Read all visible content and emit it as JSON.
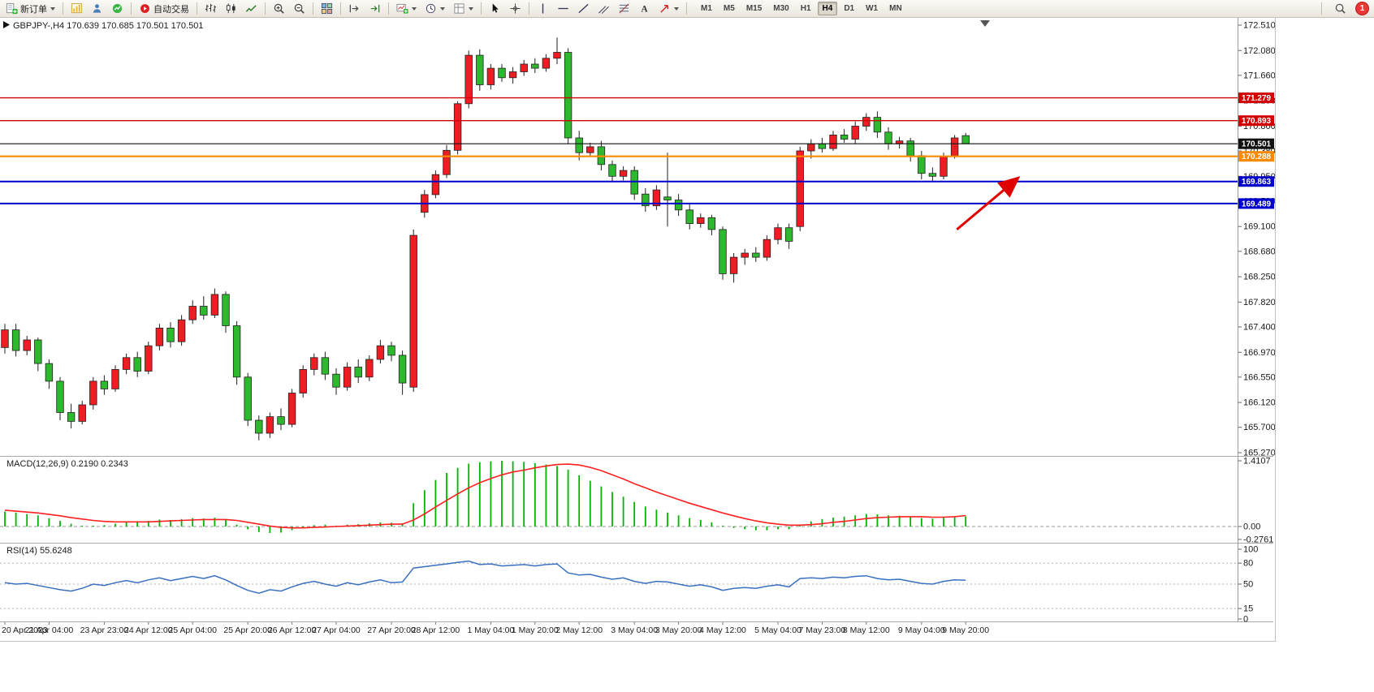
{
  "toolbar": {
    "items": [
      {
        "type": "button",
        "icon": "new-order-icon",
        "label": "新订单",
        "caret": true
      },
      {
        "type": "sep"
      },
      {
        "type": "button",
        "icon": "chart-icon"
      },
      {
        "type": "button",
        "icon": "profile-icon"
      },
      {
        "type": "button",
        "icon": "indicators-icon"
      },
      {
        "type": "sep"
      },
      {
        "type": "button",
        "icon": "autotrade-icon",
        "label": "自动交易"
      },
      {
        "type": "sep"
      },
      {
        "type": "button",
        "icon": "bar-chart-icon"
      },
      {
        "type": "button",
        "icon": "candlestick-icon"
      },
      {
        "type": "button",
        "icon": "line-chart-icon"
      },
      {
        "type": "sep"
      },
      {
        "type": "button",
        "icon": "zoom-in-icon"
      },
      {
        "type": "button",
        "icon": "zoom-out-icon"
      },
      {
        "type": "sep"
      },
      {
        "type": "button",
        "icon": "tile-windows-icon"
      },
      {
        "type": "sep"
      },
      {
        "type": "button",
        "icon": "chart-shift-icon"
      },
      {
        "type": "button",
        "icon": "auto-scroll-icon"
      },
      {
        "type": "sep"
      },
      {
        "type": "button",
        "icon": "new-chart-icon",
        "caret": true
      },
      {
        "type": "button",
        "icon": "period-icon",
        "caret": true
      },
      {
        "type": "button",
        "icon": "template-icon",
        "caret": true
      },
      {
        "type": "sep"
      },
      {
        "type": "button",
        "icon": "cursor-icon"
      },
      {
        "type": "button",
        "icon": "crosshair-icon"
      },
      {
        "type": "sep"
      },
      {
        "type": "button",
        "icon": "vline-icon"
      },
      {
        "type": "button",
        "icon": "hline-icon"
      },
      {
        "type": "button",
        "icon": "trendline-icon"
      },
      {
        "type": "button",
        "icon": "channel-icon"
      },
      {
        "type": "button",
        "icon": "fibo-icon"
      },
      {
        "type": "button",
        "icon": "text-icon"
      },
      {
        "type": "button",
        "icon": "arrows-icon",
        "caret": true
      },
      {
        "type": "sep"
      }
    ],
    "timeframes": [
      "M1",
      "M5",
      "M15",
      "M30",
      "H1",
      "H4",
      "D1",
      "W1",
      "MN"
    ],
    "active_timeframe": "H4",
    "notification_count": "1"
  },
  "chart_data": [
    {
      "type": "candlestick",
      "symbol": "GBPJPY-",
      "period": "H4",
      "title": "GBPJPY-,H4  170.639 170.685 170.501 170.501",
      "open": "170.639",
      "high": "170.685",
      "low": "170.501",
      "close": "170.501",
      "ylim": [
        165.27,
        172.51
      ],
      "bull_color": "#ee1c23",
      "bear_color": "#2db82d",
      "price_ticks": [
        "172.510",
        "172.080",
        "171.660",
        "171.230",
        "170.800",
        "170.380",
        "169.950",
        "169.530",
        "169.100",
        "168.680",
        "168.250",
        "167.820",
        "167.400",
        "166.970",
        "166.550",
        "166.120",
        "165.700",
        "165.270"
      ],
      "x_labels": [
        "20 Apr 2023",
        "21 Apr 04:00",
        "23 Apr 23:00",
        "24 Apr 12:00",
        "25 Apr 04:00",
        "25 Apr 20:00",
        "26 Apr 12:00",
        "27 Apr 04:00",
        "27 Apr 20:00",
        "28 Apr 12:00",
        "1 May 04:00",
        "1 May 20:00",
        "2 May 12:00",
        "3 May 04:00",
        "3 May 20:00",
        "4 May 12:00",
        "5 May 04:00",
        "7 May 23:00",
        "8 May 12:00",
        "9 May 04:00",
        "9 May 20:00"
      ],
      "hlines": [
        {
          "price": 171.279,
          "label": "171.279",
          "color": "#d20000",
          "width": 1.4
        },
        {
          "price": 170.893,
          "label": "170.893",
          "color": "#d20000",
          "width": 1.4
        },
        {
          "price": 170.501,
          "label": "170.501",
          "color": "#111111",
          "width": 1.2
        },
        {
          "price": 170.288,
          "label": "170.288",
          "color": "#ff8a00",
          "width": 2.2
        },
        {
          "price": 169.863,
          "label": "169.863",
          "color": "#0000cd",
          "width": 2
        },
        {
          "price": 169.489,
          "label": "169.489",
          "color": "#0000cd",
          "width": 2
        }
      ],
      "annotations": [
        {
          "type": "arrow",
          "from": {
            "bar": 86.2,
            "price": 169.05
          },
          "to": {
            "bar": 91.6,
            "price": 169.9
          },
          "color": "#e00000"
        }
      ],
      "candles": [
        [
          167.05,
          167.45,
          166.95,
          167.35
        ],
        [
          167.35,
          167.45,
          166.9,
          167.0
        ],
        [
          167.0,
          167.25,
          166.92,
          167.18
        ],
        [
          167.18,
          167.22,
          166.65,
          166.78
        ],
        [
          166.78,
          166.85,
          166.35,
          166.48
        ],
        [
          166.48,
          166.55,
          165.82,
          165.95
        ],
        [
          165.95,
          166.1,
          165.68,
          165.8
        ],
        [
          165.8,
          166.15,
          165.75,
          166.08
        ],
        [
          166.08,
          166.55,
          166.0,
          166.48
        ],
        [
          166.48,
          166.58,
          166.25,
          166.35
        ],
        [
          166.35,
          166.75,
          166.3,
          166.68
        ],
        [
          166.68,
          166.95,
          166.6,
          166.88
        ],
        [
          166.88,
          166.98,
          166.55,
          166.65
        ],
        [
          166.65,
          167.15,
          166.6,
          167.08
        ],
        [
          167.08,
          167.45,
          167.0,
          167.38
        ],
        [
          167.38,
          167.48,
          167.05,
          167.15
        ],
        [
          167.15,
          167.6,
          167.08,
          167.52
        ],
        [
          167.52,
          167.85,
          167.45,
          167.75
        ],
        [
          167.75,
          167.92,
          167.52,
          167.6
        ],
        [
          167.6,
          168.05,
          167.55,
          167.95
        ],
        [
          167.95,
          168.0,
          167.3,
          167.42
        ],
        [
          167.42,
          167.5,
          166.42,
          166.55
        ],
        [
          166.55,
          166.62,
          165.72,
          165.82
        ],
        [
          165.82,
          165.9,
          165.48,
          165.6
        ],
        [
          165.6,
          165.95,
          165.52,
          165.88
        ],
        [
          165.88,
          166.02,
          165.65,
          165.75
        ],
        [
          165.75,
          166.35,
          165.7,
          166.28
        ],
        [
          166.28,
          166.75,
          166.2,
          166.68
        ],
        [
          166.68,
          166.95,
          166.58,
          166.88
        ],
        [
          166.88,
          166.98,
          166.5,
          166.6
        ],
        [
          166.6,
          166.7,
          166.25,
          166.38
        ],
        [
          166.38,
          166.8,
          166.32,
          166.72
        ],
        [
          166.72,
          166.85,
          166.45,
          166.55
        ],
        [
          166.55,
          166.92,
          166.48,
          166.85
        ],
        [
          166.85,
          167.18,
          166.78,
          167.08
        ],
        [
          167.08,
          167.15,
          166.82,
          166.92
        ],
        [
          166.92,
          167.0,
          166.25,
          166.45
        ],
        [
          166.38,
          169.05,
          166.3,
          168.95
        ],
        [
          169.34,
          169.72,
          169.25,
          169.64
        ],
        [
          169.64,
          170.05,
          169.58,
          169.98
        ],
        [
          169.98,
          170.48,
          169.92,
          170.39
        ],
        [
          170.39,
          171.22,
          170.32,
          171.18
        ],
        [
          171.18,
          172.08,
          171.1,
          172.0
        ],
        [
          172.0,
          172.1,
          171.4,
          171.5
        ],
        [
          171.5,
          171.85,
          171.42,
          171.78
        ],
        [
          171.78,
          171.85,
          171.55,
          171.62
        ],
        [
          171.62,
          171.8,
          171.52,
          171.72
        ],
        [
          171.72,
          171.92,
          171.65,
          171.85
        ],
        [
          171.85,
          171.95,
          171.7,
          171.78
        ],
        [
          171.78,
          172.02,
          171.72,
          171.95
        ],
        [
          171.95,
          172.3,
          171.85,
          172.05
        ],
        [
          172.05,
          172.12,
          170.5,
          170.6
        ],
        [
          170.6,
          170.72,
          170.22,
          170.35
        ],
        [
          170.35,
          170.52,
          170.28,
          170.45
        ],
        [
          170.45,
          170.55,
          170.05,
          170.15
        ],
        [
          170.15,
          170.22,
          169.85,
          169.95
        ],
        [
          169.95,
          170.12,
          169.88,
          170.05
        ],
        [
          170.05,
          170.12,
          169.55,
          169.65
        ],
        [
          169.65,
          169.75,
          169.35,
          169.45
        ],
        [
          169.45,
          169.8,
          169.38,
          169.72
        ],
        [
          169.6,
          170.35,
          169.1,
          169.55
        ],
        [
          169.55,
          169.65,
          169.28,
          169.38
        ],
        [
          169.38,
          169.48,
          169.05,
          169.15
        ],
        [
          169.15,
          169.32,
          169.08,
          169.25
        ],
        [
          169.25,
          169.3,
          168.95,
          169.05
        ],
        [
          169.05,
          169.1,
          168.2,
          168.3
        ],
        [
          168.3,
          168.65,
          168.15,
          168.58
        ],
        [
          168.58,
          168.72,
          168.45,
          168.65
        ],
        [
          168.65,
          168.75,
          168.5,
          168.58
        ],
        [
          168.58,
          168.95,
          168.52,
          168.88
        ],
        [
          168.88,
          169.15,
          168.8,
          169.08
        ],
        [
          169.08,
          169.15,
          168.72,
          168.85
        ],
        [
          169.1,
          170.45,
          169.02,
          170.38
        ],
        [
          170.38,
          170.58,
          170.25,
          170.5
        ],
        [
          170.5,
          170.6,
          170.35,
          170.42
        ],
        [
          170.42,
          170.72,
          170.38,
          170.65
        ],
        [
          170.65,
          170.75,
          170.52,
          170.58
        ],
        [
          170.58,
          170.88,
          170.5,
          170.8
        ],
        [
          170.8,
          171.02,
          170.72,
          170.95
        ],
        [
          170.95,
          171.05,
          170.6,
          170.7
        ],
        [
          170.7,
          170.78,
          170.4,
          170.5
        ],
        [
          170.5,
          170.62,
          170.42,
          170.55
        ],
        [
          170.55,
          170.6,
          170.2,
          170.3
        ],
        [
          170.3,
          170.38,
          169.9,
          170.0
        ],
        [
          170.0,
          170.1,
          169.86,
          169.95
        ],
        [
          169.95,
          170.35,
          169.9,
          170.28
        ],
        [
          170.3,
          170.65,
          170.25,
          170.6
        ],
        [
          170.639,
          170.685,
          170.501,
          170.501
        ]
      ]
    },
    {
      "type": "macd",
      "name": "MACD(12,26,9)",
      "label": "MACD(12,26,9) 0.2190 0.2343",
      "value_main": "0.2190",
      "value_signal": "0.2343",
      "ylim": [
        -0.2761,
        1.4107
      ],
      "axis_ticks": [
        "1.4107",
        "0.00",
        "-0.2761"
      ],
      "hist_color": "#00b400",
      "signal_color": "#ff2020",
      "hist": [
        0.32,
        0.3,
        0.27,
        0.24,
        0.18,
        0.12,
        0.06,
        0.02,
        0.02,
        0.03,
        0.06,
        0.09,
        0.1,
        0.12,
        0.15,
        0.14,
        0.16,
        0.18,
        0.17,
        0.19,
        0.14,
        0.04,
        -0.06,
        -0.12,
        -0.14,
        -0.13,
        -0.08,
        -0.02,
        0.03,
        0.04,
        0.02,
        0.04,
        0.05,
        0.07,
        0.09,
        0.08,
        0.07,
        0.5,
        0.78,
        1.0,
        1.15,
        1.26,
        1.35,
        1.38,
        1.4,
        1.41,
        1.4,
        1.39,
        1.36,
        1.33,
        1.3,
        1.22,
        1.1,
        0.98,
        0.86,
        0.74,
        0.64,
        0.53,
        0.43,
        0.36,
        0.3,
        0.24,
        0.18,
        0.14,
        0.09,
        0.02,
        -0.03,
        -0.06,
        -0.08,
        -0.08,
        -0.06,
        -0.06,
        0.04,
        0.11,
        0.16,
        0.19,
        0.21,
        0.24,
        0.27,
        0.26,
        0.24,
        0.23,
        0.21,
        0.18,
        0.17,
        0.19,
        0.21,
        0.219
      ],
      "signal": [
        0.35,
        0.33,
        0.31,
        0.29,
        0.26,
        0.23,
        0.19,
        0.16,
        0.13,
        0.11,
        0.1,
        0.1,
        0.1,
        0.1,
        0.11,
        0.12,
        0.13,
        0.14,
        0.15,
        0.15,
        0.15,
        0.13,
        0.09,
        0.05,
        0.01,
        -0.02,
        -0.03,
        -0.03,
        -0.02,
        -0.01,
        0.0,
        0.01,
        0.02,
        0.03,
        0.04,
        0.05,
        0.05,
        0.14,
        0.27,
        0.42,
        0.56,
        0.7,
        0.83,
        0.94,
        1.03,
        1.11,
        1.17,
        1.21,
        1.26,
        1.3,
        1.33,
        1.34,
        1.32,
        1.27,
        1.2,
        1.11,
        1.02,
        0.92,
        0.83,
        0.74,
        0.66,
        0.58,
        0.5,
        0.43,
        0.36,
        0.29,
        0.23,
        0.17,
        0.12,
        0.08,
        0.05,
        0.03,
        0.03,
        0.04,
        0.06,
        0.09,
        0.11,
        0.14,
        0.17,
        0.19,
        0.2,
        0.21,
        0.21,
        0.21,
        0.2,
        0.2,
        0.21,
        0.2343
      ]
    },
    {
      "type": "rsi",
      "name": "RSI(14)",
      "label": "RSI(14) 55.6248",
      "value": "55.6248",
      "ylim": [
        0,
        100
      ],
      "levels": [
        80,
        50,
        15
      ],
      "axis_ticks": [
        "100",
        "80",
        "50",
        "15",
        "0"
      ],
      "line_color": "#3a6fbf",
      "values": [
        52,
        50,
        51,
        48,
        45,
        42,
        40,
        44,
        50,
        48,
        52,
        55,
        52,
        56,
        59,
        55,
        58,
        61,
        58,
        62,
        56,
        48,
        41,
        37,
        42,
        40,
        46,
        51,
        54,
        50,
        47,
        52,
        49,
        53,
        56,
        52,
        53,
        73,
        75,
        77,
        79,
        81,
        83,
        78,
        79,
        76,
        77,
        78,
        76,
        78,
        79,
        66,
        63,
        64,
        60,
        57,
        59,
        54,
        51,
        54,
        53,
        50,
        47,
        49,
        46,
        41,
        44,
        45,
        44,
        47,
        49,
        46,
        58,
        59,
        58,
        60,
        59,
        61,
        62,
        58,
        56,
        57,
        54,
        51,
        50,
        54,
        56,
        55.62
      ]
    }
  ]
}
